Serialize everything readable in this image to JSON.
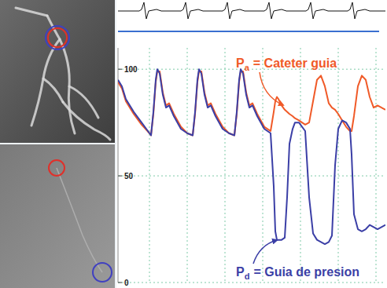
{
  "chart_data": {
    "type": "line",
    "x": [
      0,
      5,
      10,
      20,
      30,
      40,
      42,
      45,
      48,
      50,
      53,
      57,
      61,
      65,
      71,
      80,
      88,
      95,
      98,
      101,
      103,
      106,
      110,
      114,
      118,
      124,
      133,
      141,
      148,
      151,
      154,
      156,
      159,
      163,
      167,
      171,
      177,
      186,
      194,
      198,
      200,
      202,
      204,
      208,
      212,
      215,
      218,
      222,
      225,
      230,
      238,
      243,
      248,
      253,
      258,
      263,
      268,
      272,
      276,
      280,
      285,
      290,
      295,
      297,
      300,
      305,
      310,
      315,
      320,
      325,
      330,
      335,
      340
    ],
    "xlim": [
      0,
      340
    ],
    "ylim": [
      0,
      110
    ],
    "yticks": [
      0,
      50,
      100
    ],
    "grid": true,
    "tick_labels": "y",
    "series": [
      {
        "color": "#f05a28",
        "values": [
          94,
          91,
          85,
          79,
          74,
          70,
          69,
          79,
          94,
          99,
          99,
          89,
          83,
          84,
          79,
          73,
          70,
          69,
          79,
          94,
          99,
          99,
          89,
          83,
          84,
          79,
          73,
          70,
          69,
          79,
          94,
          99,
          99,
          89,
          83,
          84,
          79,
          73,
          71,
          80,
          85,
          87,
          86,
          83,
          81,
          80,
          79,
          78,
          77,
          76,
          74,
          75,
          85,
          95,
          97,
          92,
          84,
          82,
          81,
          79,
          76,
          73,
          71,
          71,
          78,
          92,
          97,
          95,
          87,
          82,
          83,
          82,
          81
        ]
      },
      {
        "color": "#3b3fa6",
        "values": [
          95,
          92,
          86,
          80,
          75,
          70,
          69,
          80,
          95,
          100,
          98,
          88,
          82,
          83,
          78,
          72,
          70,
          69,
          80,
          95,
          100,
          98,
          88,
          82,
          83,
          78,
          72,
          70,
          69,
          80,
          95,
          100,
          98,
          88,
          82,
          83,
          78,
          72,
          70,
          45,
          24,
          20,
          20,
          20,
          21,
          40,
          65,
          72,
          75,
          75,
          71,
          40,
          23,
          20,
          19,
          18,
          19,
          22,
          55,
          72,
          76,
          75,
          72,
          60,
          32,
          25,
          24,
          25,
          27,
          26,
          25,
          26,
          27
        ]
      }
    ],
    "annotations": [
      {
        "symbol": "P",
        "subscript": "a",
        "text": "= Cateter guia"
      },
      {
        "symbol": "P",
        "subscript": "d",
        "text": "= Guia de presion"
      }
    ]
  }
}
